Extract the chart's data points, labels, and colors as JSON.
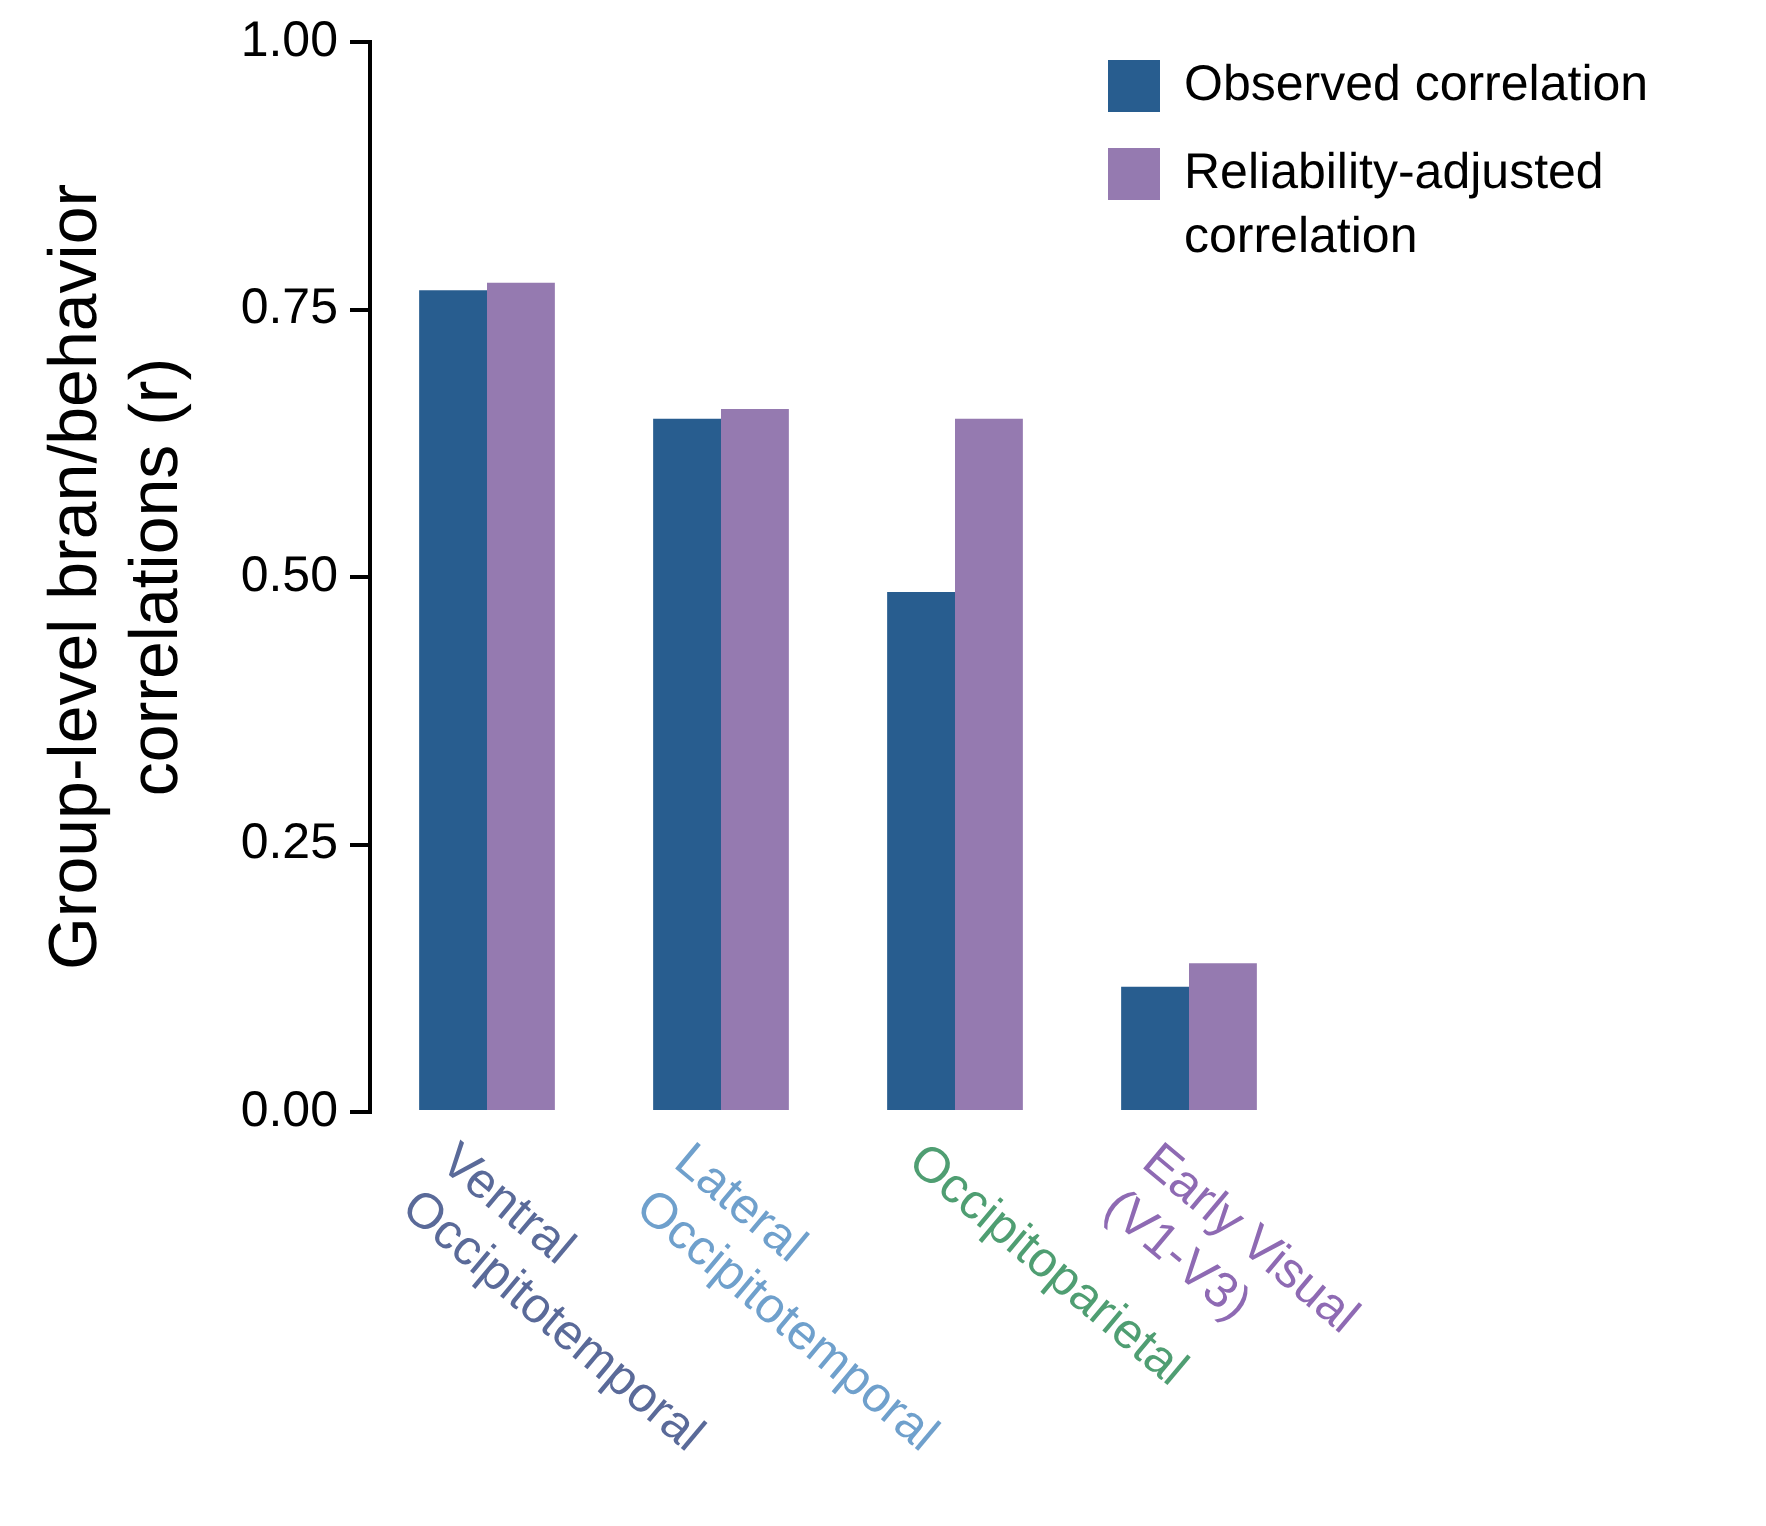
{
  "chart_data": {
    "type": "bar",
    "ylabel": "Group-level bran/behavior\ncorrelations (r)",
    "categories": [
      "Ventral\nOccipitotemporal",
      "Lateral\nOccipitotemporal",
      "Occipitoparietal",
      "Early Visual\n(V1-V3)"
    ],
    "series": [
      {
        "name": "Observed correlation",
        "color": "#285d8f",
        "values": [
          0.768,
          0.648,
          0.486,
          0.117
        ]
      },
      {
        "name": "Reliability-adjusted correlation",
        "color": "#957ab0",
        "values": [
          0.775,
          0.657,
          0.648,
          0.139
        ]
      }
    ],
    "ylim": [
      0,
      1
    ],
    "yticks": [
      {
        "value": 0,
        "label": "0.00"
      },
      {
        "value": 0.25,
        "label": "0.25"
      },
      {
        "value": 0.5,
        "label": "0.50"
      },
      {
        "value": 0.75,
        "label": "0.75"
      },
      {
        "value": 1,
        "label": "1.00"
      }
    ],
    "grid": false,
    "legend": "top right"
  }
}
